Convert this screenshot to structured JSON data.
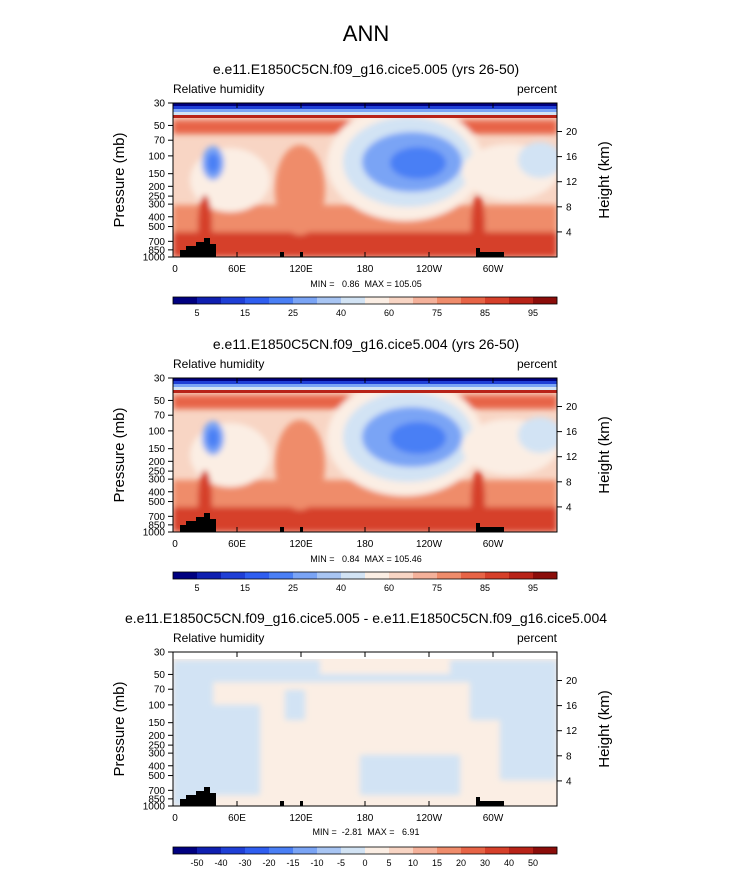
{
  "figure_title": "ANN",
  "chart_data": [
    {
      "type": "heatmap",
      "title": "e.e11.E1850C5CN.f09_g16.cice5.005 (yrs 26-50)",
      "variable": "Relative humidity",
      "units": "percent",
      "ylabel": "Pressure (mb)",
      "y2label": "Height (km)",
      "xticks": [
        "0",
        "60E",
        "120E",
        "180",
        "120W",
        "60W"
      ],
      "yticks": [
        "30",
        "50",
        "70",
        "100",
        "150",
        "200",
        "250",
        "300",
        "400",
        "500",
        "700",
        "850",
        "1000"
      ],
      "y2ticks": [
        "20",
        "16",
        "12",
        "8",
        "4"
      ],
      "stats": "MIN =   0.86  MAX = 105.05",
      "colorbar_ticks": [
        "5",
        "15",
        "25",
        "40",
        "60",
        "75",
        "85",
        "95"
      ],
      "colorbar_colors": [
        "#000080",
        "#0f1fb0",
        "#1f3fd6",
        "#2f5ef0",
        "#4a7ff5",
        "#7aa4f5",
        "#a8c5f3",
        "#d2e3f4",
        "#fbeee4",
        "#f8d5c4",
        "#f4b19a",
        "#ef8c6b",
        "#e76446",
        "#d6402a",
        "#b82318",
        "#8b0d0a"
      ]
    },
    {
      "type": "heatmap",
      "title": "e.e11.E1850C5CN.f09_g16.cice5.004 (yrs 26-50)",
      "variable": "Relative humidity",
      "units": "percent",
      "ylabel": "Pressure (mb)",
      "y2label": "Height (km)",
      "xticks": [
        "0",
        "60E",
        "120E",
        "180",
        "120W",
        "60W"
      ],
      "yticks": [
        "30",
        "50",
        "70",
        "100",
        "150",
        "200",
        "250",
        "300",
        "400",
        "500",
        "700",
        "850",
        "1000"
      ],
      "y2ticks": [
        "20",
        "16",
        "12",
        "8",
        "4"
      ],
      "stats": "MIN =   0.84  MAX = 105.46",
      "colorbar_ticks": [
        "5",
        "15",
        "25",
        "40",
        "60",
        "75",
        "85",
        "95"
      ],
      "colorbar_colors": [
        "#000080",
        "#0f1fb0",
        "#1f3fd6",
        "#2f5ef0",
        "#4a7ff5",
        "#7aa4f5",
        "#a8c5f3",
        "#d2e3f4",
        "#fbeee4",
        "#f8d5c4",
        "#f4b19a",
        "#ef8c6b",
        "#e76446",
        "#d6402a",
        "#b82318",
        "#8b0d0a"
      ]
    },
    {
      "type": "heatmap",
      "title": "e.e11.E1850C5CN.f09_g16.cice5.005 - e.e11.E1850C5CN.f09_g16.cice5.004",
      "variable": "Relative humidity",
      "units": "percent",
      "ylabel": "Pressure (mb)",
      "y2label": "Height (km)",
      "xticks": [
        "0",
        "60E",
        "120E",
        "180",
        "120W",
        "60W"
      ],
      "yticks": [
        "30",
        "50",
        "70",
        "100",
        "150",
        "200",
        "250",
        "300",
        "400",
        "500",
        "700",
        "850",
        "1000"
      ],
      "y2ticks": [
        "20",
        "16",
        "12",
        "8",
        "4"
      ],
      "stats": "MIN =  -2.81  MAX =   6.91",
      "colorbar_ticks": [
        "-50",
        "-40",
        "-30",
        "-20",
        "-15",
        "-10",
        "-5",
        "0",
        "5",
        "10",
        "15",
        "20",
        "30",
        "40",
        "50"
      ],
      "colorbar_colors": [
        "#000080",
        "#0f1fb0",
        "#1f3fd6",
        "#2f5ef0",
        "#4a7ff5",
        "#7aa4f5",
        "#a8c5f3",
        "#d2e3f4",
        "#fbeee4",
        "#f8d5c4",
        "#f4b19a",
        "#ef8c6b",
        "#e76446",
        "#d6402a",
        "#b82318",
        "#8b0d0a"
      ]
    }
  ]
}
